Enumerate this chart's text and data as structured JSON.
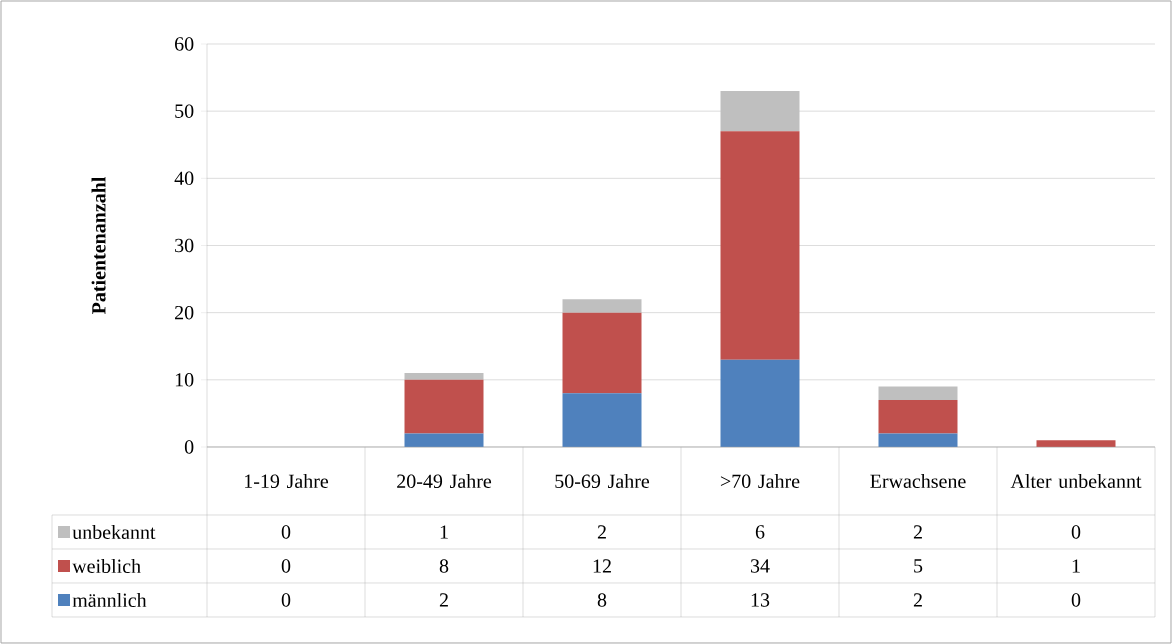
{
  "chart_data": {
    "type": "bar",
    "stacked": true,
    "ylabel": "Patientenanzahl",
    "categories": [
      "1-19 Jahre",
      "20-49 Jahre",
      "50-69 Jahre",
      ">70 Jahre",
      "Erwachsene",
      "Alter unbekannt"
    ],
    "series": [
      {
        "name": "männlich",
        "color": "#4f81bd",
        "values": [
          0,
          2,
          8,
          13,
          2,
          0
        ]
      },
      {
        "name": "weiblich",
        "color": "#c0504d",
        "values": [
          0,
          8,
          12,
          34,
          5,
          1
        ]
      },
      {
        "name": "unbekannt",
        "color": "#bfbfbf",
        "values": [
          0,
          1,
          2,
          6,
          2,
          0
        ]
      }
    ],
    "ylim": [
      0,
      60
    ],
    "yticks": [
      0,
      10,
      20,
      30,
      40,
      50,
      60
    ],
    "grid": "y",
    "legend": "bottom",
    "data_labels": true
  }
}
